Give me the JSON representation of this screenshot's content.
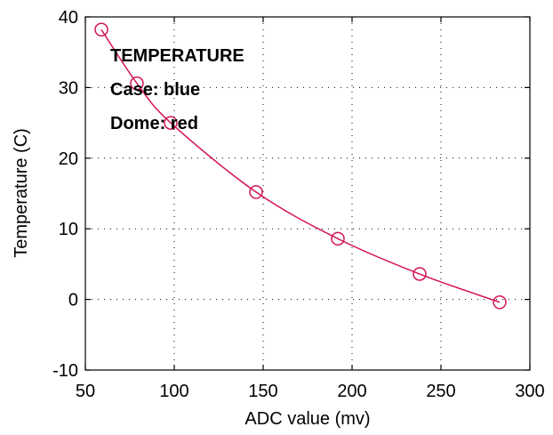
{
  "chart_data": {
    "type": "line",
    "title": "",
    "xlabel": "ADC value (mv)",
    "ylabel": "Temperature (C)",
    "xlim": [
      50,
      300
    ],
    "ylim": [
      -10,
      40
    ],
    "x_ticks": [
      50,
      100,
      150,
      200,
      250,
      300
    ],
    "y_ticks": [
      -10,
      0,
      10,
      20,
      30,
      40
    ],
    "x_tick_labels": [
      "50",
      "100",
      "150",
      "200",
      "250",
      "300"
    ],
    "y_tick_labels": [
      "-10",
      "0",
      "10",
      "20",
      "30",
      "40"
    ],
    "grid": true,
    "series": [
      {
        "color": "#d4145a",
        "marker": "circle",
        "x": [
          59,
          79,
          98,
          146,
          192,
          238,
          283
        ],
        "y": [
          38.2,
          30.6,
          25.0,
          15.2,
          8.6,
          3.6,
          -0.4
        ]
      }
    ],
    "annotations": [
      "TEMPERATURE",
      "Case: blue",
      "Dome: red"
    ]
  }
}
